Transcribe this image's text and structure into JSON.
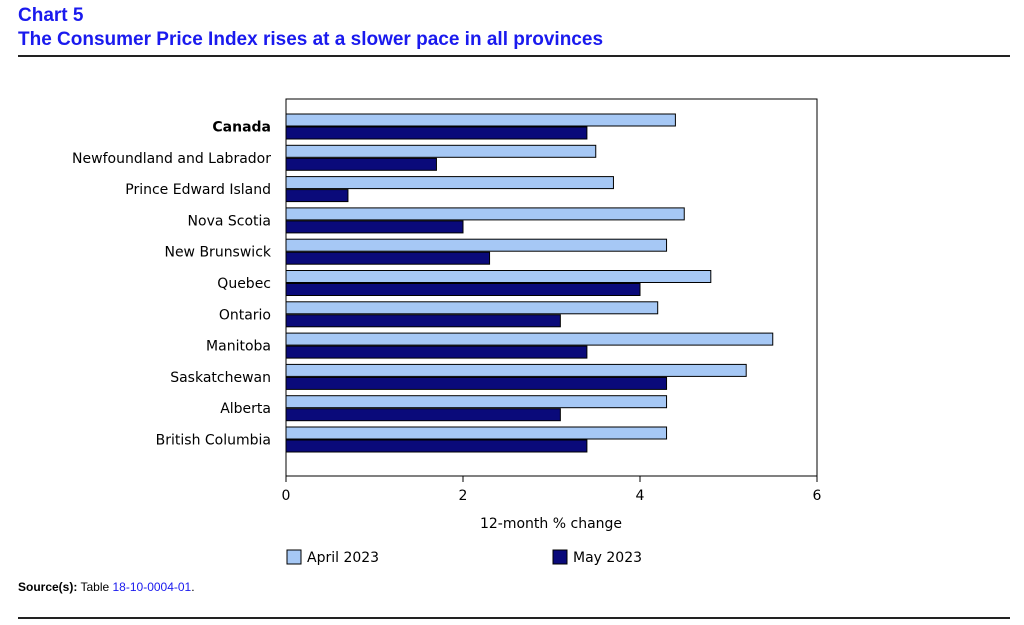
{
  "header": {
    "chart_label": "Chart 5",
    "title": "The Consumer Price Index rises at a slower pace in all provinces"
  },
  "source": {
    "label": "Source(s):",
    "text": "Table",
    "link_text": "18-10-0004-01",
    "trailing": "."
  },
  "colors": {
    "title": "#1a1aee",
    "april": "#a6c8f5",
    "may": "#0a0a7a",
    "link": "#1a1aee"
  },
  "chart_data": {
    "type": "bar",
    "orientation": "horizontal",
    "categories": [
      "Canada",
      "Newfoundland and Labrador",
      "Prince Edward Island",
      "Nova Scotia",
      "New Brunswick",
      "Quebec",
      "Ontario",
      "Manitoba",
      "Saskatchewan",
      "Alberta",
      "British Columbia"
    ],
    "bold_categories": [
      "Canada"
    ],
    "series": [
      {
        "name": "April 2023",
        "color": "#a6c8f5",
        "values": [
          4.4,
          3.5,
          3.7,
          4.5,
          4.3,
          4.8,
          4.2,
          5.5,
          5.2,
          4.3,
          4.3
        ]
      },
      {
        "name": "May 2023",
        "color": "#0a0a7a",
        "values": [
          3.4,
          1.7,
          0.7,
          2.0,
          2.3,
          4.0,
          3.1,
          3.4,
          4.3,
          3.1,
          3.4
        ]
      }
    ],
    "xlabel": "12-month % change",
    "ylabel": "",
    "xlim": [
      0,
      6
    ],
    "xticks": [
      0,
      2,
      4,
      6
    ],
    "grid": false,
    "legend_position": "bottom"
  }
}
